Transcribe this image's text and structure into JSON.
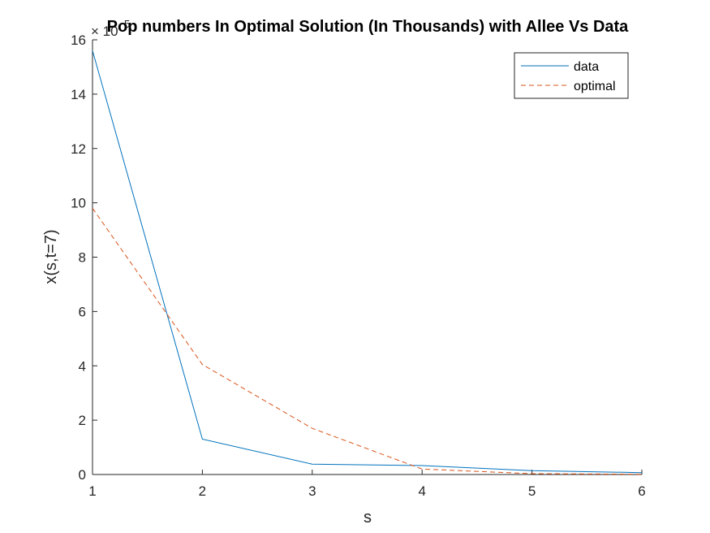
{
  "chart_data": {
    "type": "line",
    "title": "Pop numbers In Optimal Solution (In Thousands) with Allee Vs Data",
    "xlabel": "s",
    "ylabel": "x(s,t=7)",
    "y_exponent_base": "× 10",
    "y_exponent_power": "5",
    "x": [
      1,
      2,
      3,
      4,
      5,
      6
    ],
    "xlim": [
      1,
      6
    ],
    "ylim": [
      0,
      16
    ],
    "y_scale_factor": 100000,
    "xticks": [
      "1",
      "2",
      "3",
      "4",
      "5",
      "6"
    ],
    "yticks": [
      "0",
      "2",
      "4",
      "6",
      "8",
      "10",
      "12",
      "14",
      "16"
    ],
    "grid": false,
    "legend_location": "top-right",
    "series": [
      {
        "name": "data",
        "values": [
          15.6,
          1.3,
          0.38,
          0.33,
          0.14,
          0.07
        ],
        "color": "#0072BD",
        "style": "solid"
      },
      {
        "name": "optimal",
        "values": [
          9.8,
          4.05,
          1.7,
          0.2,
          0.03,
          0.01
        ],
        "color": "#D95319",
        "style": "dashed"
      }
    ]
  }
}
